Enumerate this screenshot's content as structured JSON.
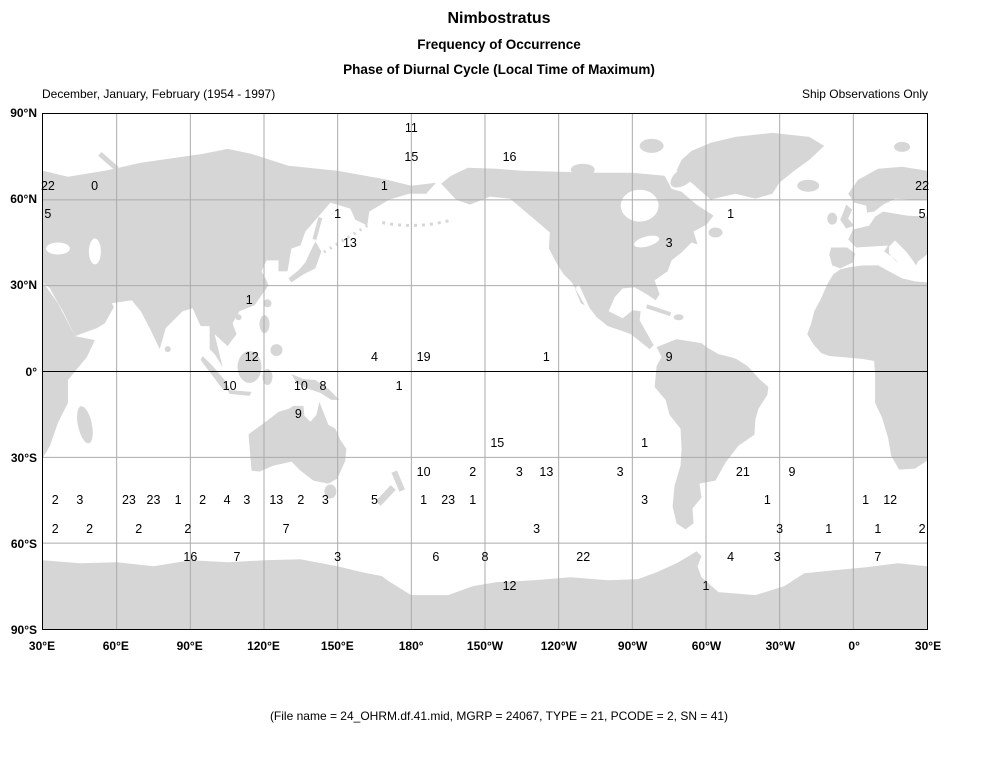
{
  "header": {
    "title": "Nimbostratus",
    "subtitle1": "Frequency of Occurrence",
    "subtitle2": "Phase of Diurnal Cycle (Local Time of Maximum)",
    "period_label": "December, January, February (1954 - 1997)",
    "source_label": "Ship Observations Only"
  },
  "footer": {
    "caption": "(File name = 24_OHRM.df.41.mid, MGRP = 24067, TYPE = 21, PCODE = 2, SN = 41)"
  },
  "colors": {
    "land": "#d6d6d6",
    "grid": "#ababab",
    "equator": "#000000",
    "border": "#000000",
    "text": "#000000"
  },
  "chart_data": {
    "type": "scatter",
    "title": "Nimbostratus",
    "subtitle": "Frequency of Occurrence - Phase of Diurnal Cycle (Local Time of Maximum)",
    "season": "December, January, February (1954 - 1997)",
    "source": "Ship Observations Only",
    "projection": "equirectangular world map, Pacific-centered",
    "value_meaning": "local time (hour 0-23) of diurnal maximum, plotted at grid-box centers",
    "grid_interval_deg": 30,
    "x_axis": {
      "label": "Longitude",
      "range_deg_east": [
        30,
        390
      ],
      "tick_labels": [
        "30°E",
        "60°E",
        "90°E",
        "120°E",
        "150°E",
        "180°",
        "150°W",
        "120°W",
        "90°W",
        "60°W",
        "30°W",
        "0°",
        "30°E"
      ]
    },
    "y_axis": {
      "label": "Latitude",
      "range": [
        -90,
        90
      ],
      "tick_labels": [
        "90°N",
        "60°N",
        "30°N",
        "0°",
        "30°S",
        "60°S",
        "90°S"
      ]
    },
    "points": [
      {
        "v": 11,
        "lon": 180,
        "lat": 85
      },
      {
        "v": 15,
        "lon": 180,
        "lat": 75
      },
      {
        "v": 16,
        "lon": 220,
        "lat": 75
      },
      {
        "v": 22,
        "lon": 32,
        "lat": 65
      },
      {
        "v": 0,
        "lon": 51,
        "lat": 65
      },
      {
        "v": 1,
        "lon": 169,
        "lat": 65
      },
      {
        "v": 22,
        "lon": 388,
        "lat": 65
      },
      {
        "v": 5,
        "lon": 32,
        "lat": 55
      },
      {
        "v": 1,
        "lon": 150,
        "lat": 55
      },
      {
        "v": 1,
        "lon": 310,
        "lat": 55
      },
      {
        "v": 5,
        "lon": 388,
        "lat": 55
      },
      {
        "v": 13,
        "lon": 155,
        "lat": 45
      },
      {
        "v": 3,
        "lon": 285,
        "lat": 45
      },
      {
        "v": 1,
        "lon": 114,
        "lat": 25
      },
      {
        "v": 12,
        "lon": 115,
        "lat": 5
      },
      {
        "v": 4,
        "lon": 165,
        "lat": 5
      },
      {
        "v": 19,
        "lon": 185,
        "lat": 5
      },
      {
        "v": 1,
        "lon": 235,
        "lat": 5
      },
      {
        "v": 9,
        "lon": 285,
        "lat": 5
      },
      {
        "v": 10,
        "lon": 106,
        "lat": -5
      },
      {
        "v": 10,
        "lon": 135,
        "lat": -5
      },
      {
        "v": 8,
        "lon": 144,
        "lat": -5
      },
      {
        "v": 1,
        "lon": 175,
        "lat": -5
      },
      {
        "v": 9,
        "lon": 134,
        "lat": -15
      },
      {
        "v": 15,
        "lon": 215,
        "lat": -25
      },
      {
        "v": 1,
        "lon": 275,
        "lat": -25
      },
      {
        "v": 10,
        "lon": 185,
        "lat": -35
      },
      {
        "v": 2,
        "lon": 205,
        "lat": -35
      },
      {
        "v": 3,
        "lon": 224,
        "lat": -35
      },
      {
        "v": 13,
        "lon": 235,
        "lat": -35
      },
      {
        "v": 3,
        "lon": 265,
        "lat": -35
      },
      {
        "v": 21,
        "lon": 315,
        "lat": -35
      },
      {
        "v": 9,
        "lon": 335,
        "lat": -35
      },
      {
        "v": 2,
        "lon": 35,
        "lat": -45
      },
      {
        "v": 3,
        "lon": 45,
        "lat": -45
      },
      {
        "v": 23,
        "lon": 65,
        "lat": -45
      },
      {
        "v": 23,
        "lon": 75,
        "lat": -45
      },
      {
        "v": 1,
        "lon": 85,
        "lat": -45
      },
      {
        "v": 2,
        "lon": 95,
        "lat": -45
      },
      {
        "v": 4,
        "lon": 105,
        "lat": -45
      },
      {
        "v": 3,
        "lon": 113,
        "lat": -45
      },
      {
        "v": 13,
        "lon": 125,
        "lat": -45
      },
      {
        "v": 2,
        "lon": 135,
        "lat": -45
      },
      {
        "v": 3,
        "lon": 145,
        "lat": -45
      },
      {
        "v": 5,
        "lon": 165,
        "lat": -45
      },
      {
        "v": 1,
        "lon": 185,
        "lat": -45
      },
      {
        "v": 23,
        "lon": 195,
        "lat": -45
      },
      {
        "v": 1,
        "lon": 205,
        "lat": -45
      },
      {
        "v": 3,
        "lon": 275,
        "lat": -45
      },
      {
        "v": 1,
        "lon": 325,
        "lat": -45
      },
      {
        "v": 1,
        "lon": 365,
        "lat": -45
      },
      {
        "v": 12,
        "lon": 375,
        "lat": -45
      },
      {
        "v": 2,
        "lon": 35,
        "lat": -55
      },
      {
        "v": 2,
        "lon": 49,
        "lat": -55
      },
      {
        "v": 2,
        "lon": 69,
        "lat": -55
      },
      {
        "v": 2,
        "lon": 89,
        "lat": -55
      },
      {
        "v": 7,
        "lon": 129,
        "lat": -55
      },
      {
        "v": 3,
        "lon": 231,
        "lat": -55
      },
      {
        "v": 3,
        "lon": 330,
        "lat": -55
      },
      {
        "v": 1,
        "lon": 350,
        "lat": -55
      },
      {
        "v": 1,
        "lon": 370,
        "lat": -55
      },
      {
        "v": 2,
        "lon": 388,
        "lat": -55
      },
      {
        "v": 16,
        "lon": 90,
        "lat": -65
      },
      {
        "v": 7,
        "lon": 109,
        "lat": -65
      },
      {
        "v": 3,
        "lon": 150,
        "lat": -65
      },
      {
        "v": 6,
        "lon": 190,
        "lat": -65
      },
      {
        "v": 8,
        "lon": 210,
        "lat": -65
      },
      {
        "v": 22,
        "lon": 250,
        "lat": -65
      },
      {
        "v": 4,
        "lon": 310,
        "lat": -65
      },
      {
        "v": 3,
        "lon": 329,
        "lat": -65
      },
      {
        "v": 7,
        "lon": 370,
        "lat": -65
      },
      {
        "v": 12,
        "lon": 220,
        "lat": -75
      },
      {
        "v": 1,
        "lon": 300,
        "lat": -75
      }
    ]
  }
}
